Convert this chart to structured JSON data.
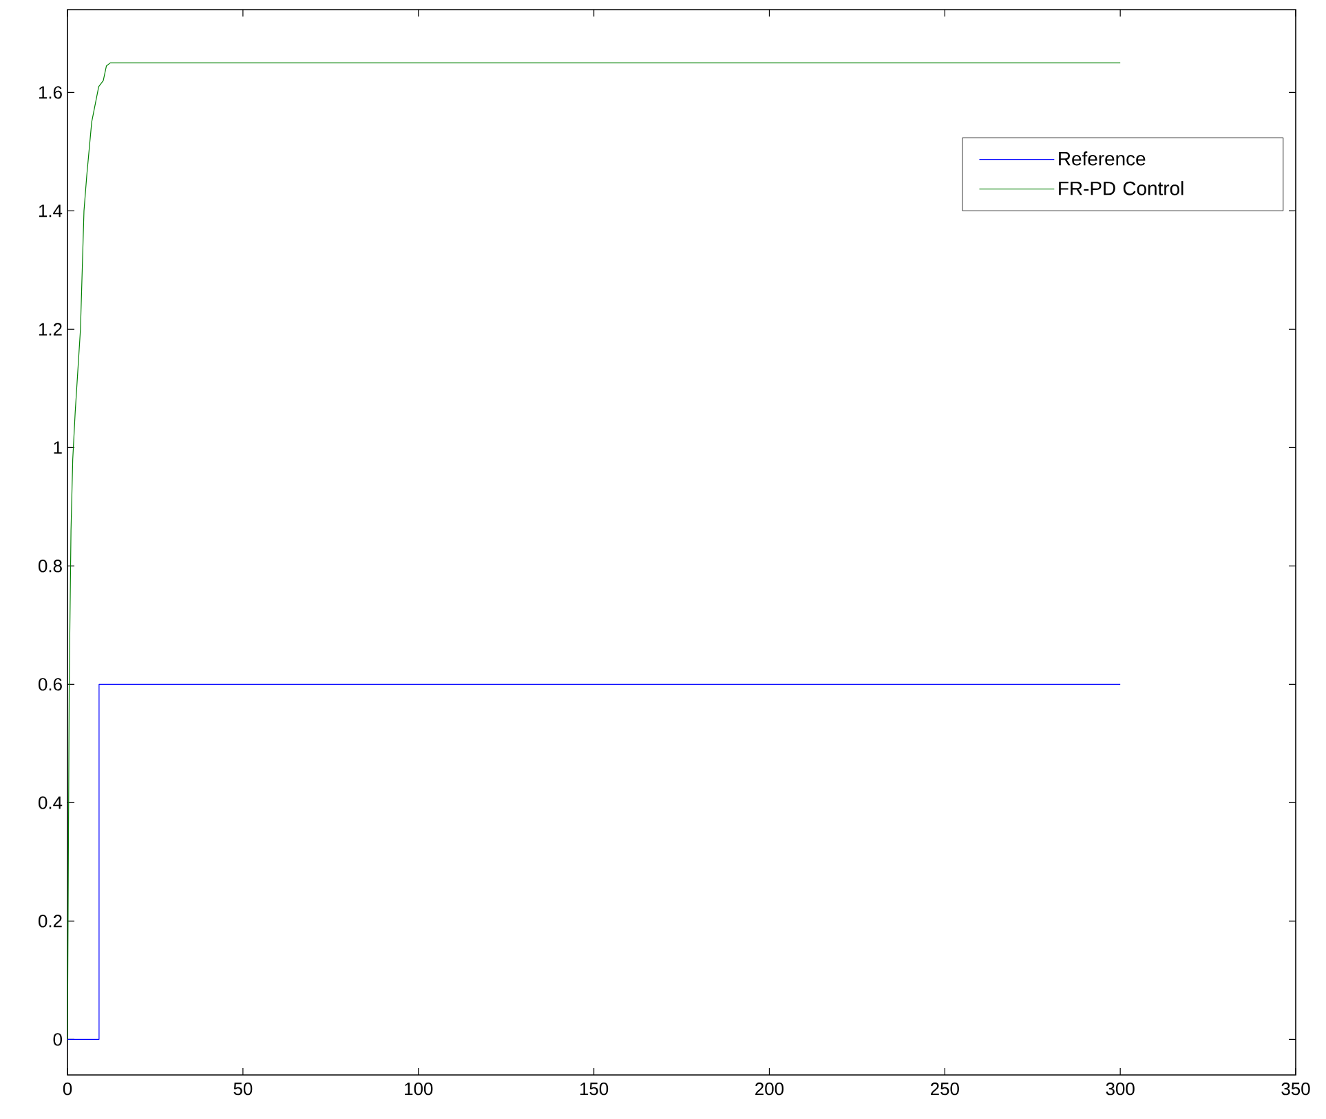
{
  "chart_data": {
    "type": "line",
    "xlim": [
      0,
      350
    ],
    "xticks": [
      0,
      50,
      100,
      150,
      200,
      250,
      300,
      350
    ],
    "ylim": [
      -0.06,
      1.74
    ],
    "yticks": [
      0,
      0.2,
      0.4,
      0.6,
      0.8,
      1,
      1.2,
      1.4,
      1.6
    ],
    "legend": "top right",
    "grid": false,
    "marker": "none",
    "line_style": "solid",
    "series": [
      {
        "name": "Reference",
        "color": "#0000ff",
        "x": [
          0,
          9,
          9,
          300
        ],
        "values": [
          0,
          0,
          0.6,
          0.6
        ]
      },
      {
        "name": "FR-PD Control",
        "color": "#008000",
        "x": [
          0,
          0.5,
          1,
          1.5,
          2.2,
          3.7,
          4.7,
          5.5,
          6.9,
          8.9,
          10.2,
          11.1,
          12.2,
          300
        ],
        "values": [
          0,
          0.6,
          0.86,
          0.98,
          1.06,
          1.2,
          1.4,
          1.46,
          1.55,
          1.61,
          1.62,
          1.645,
          1.65,
          1.65
        ]
      }
    ]
  }
}
